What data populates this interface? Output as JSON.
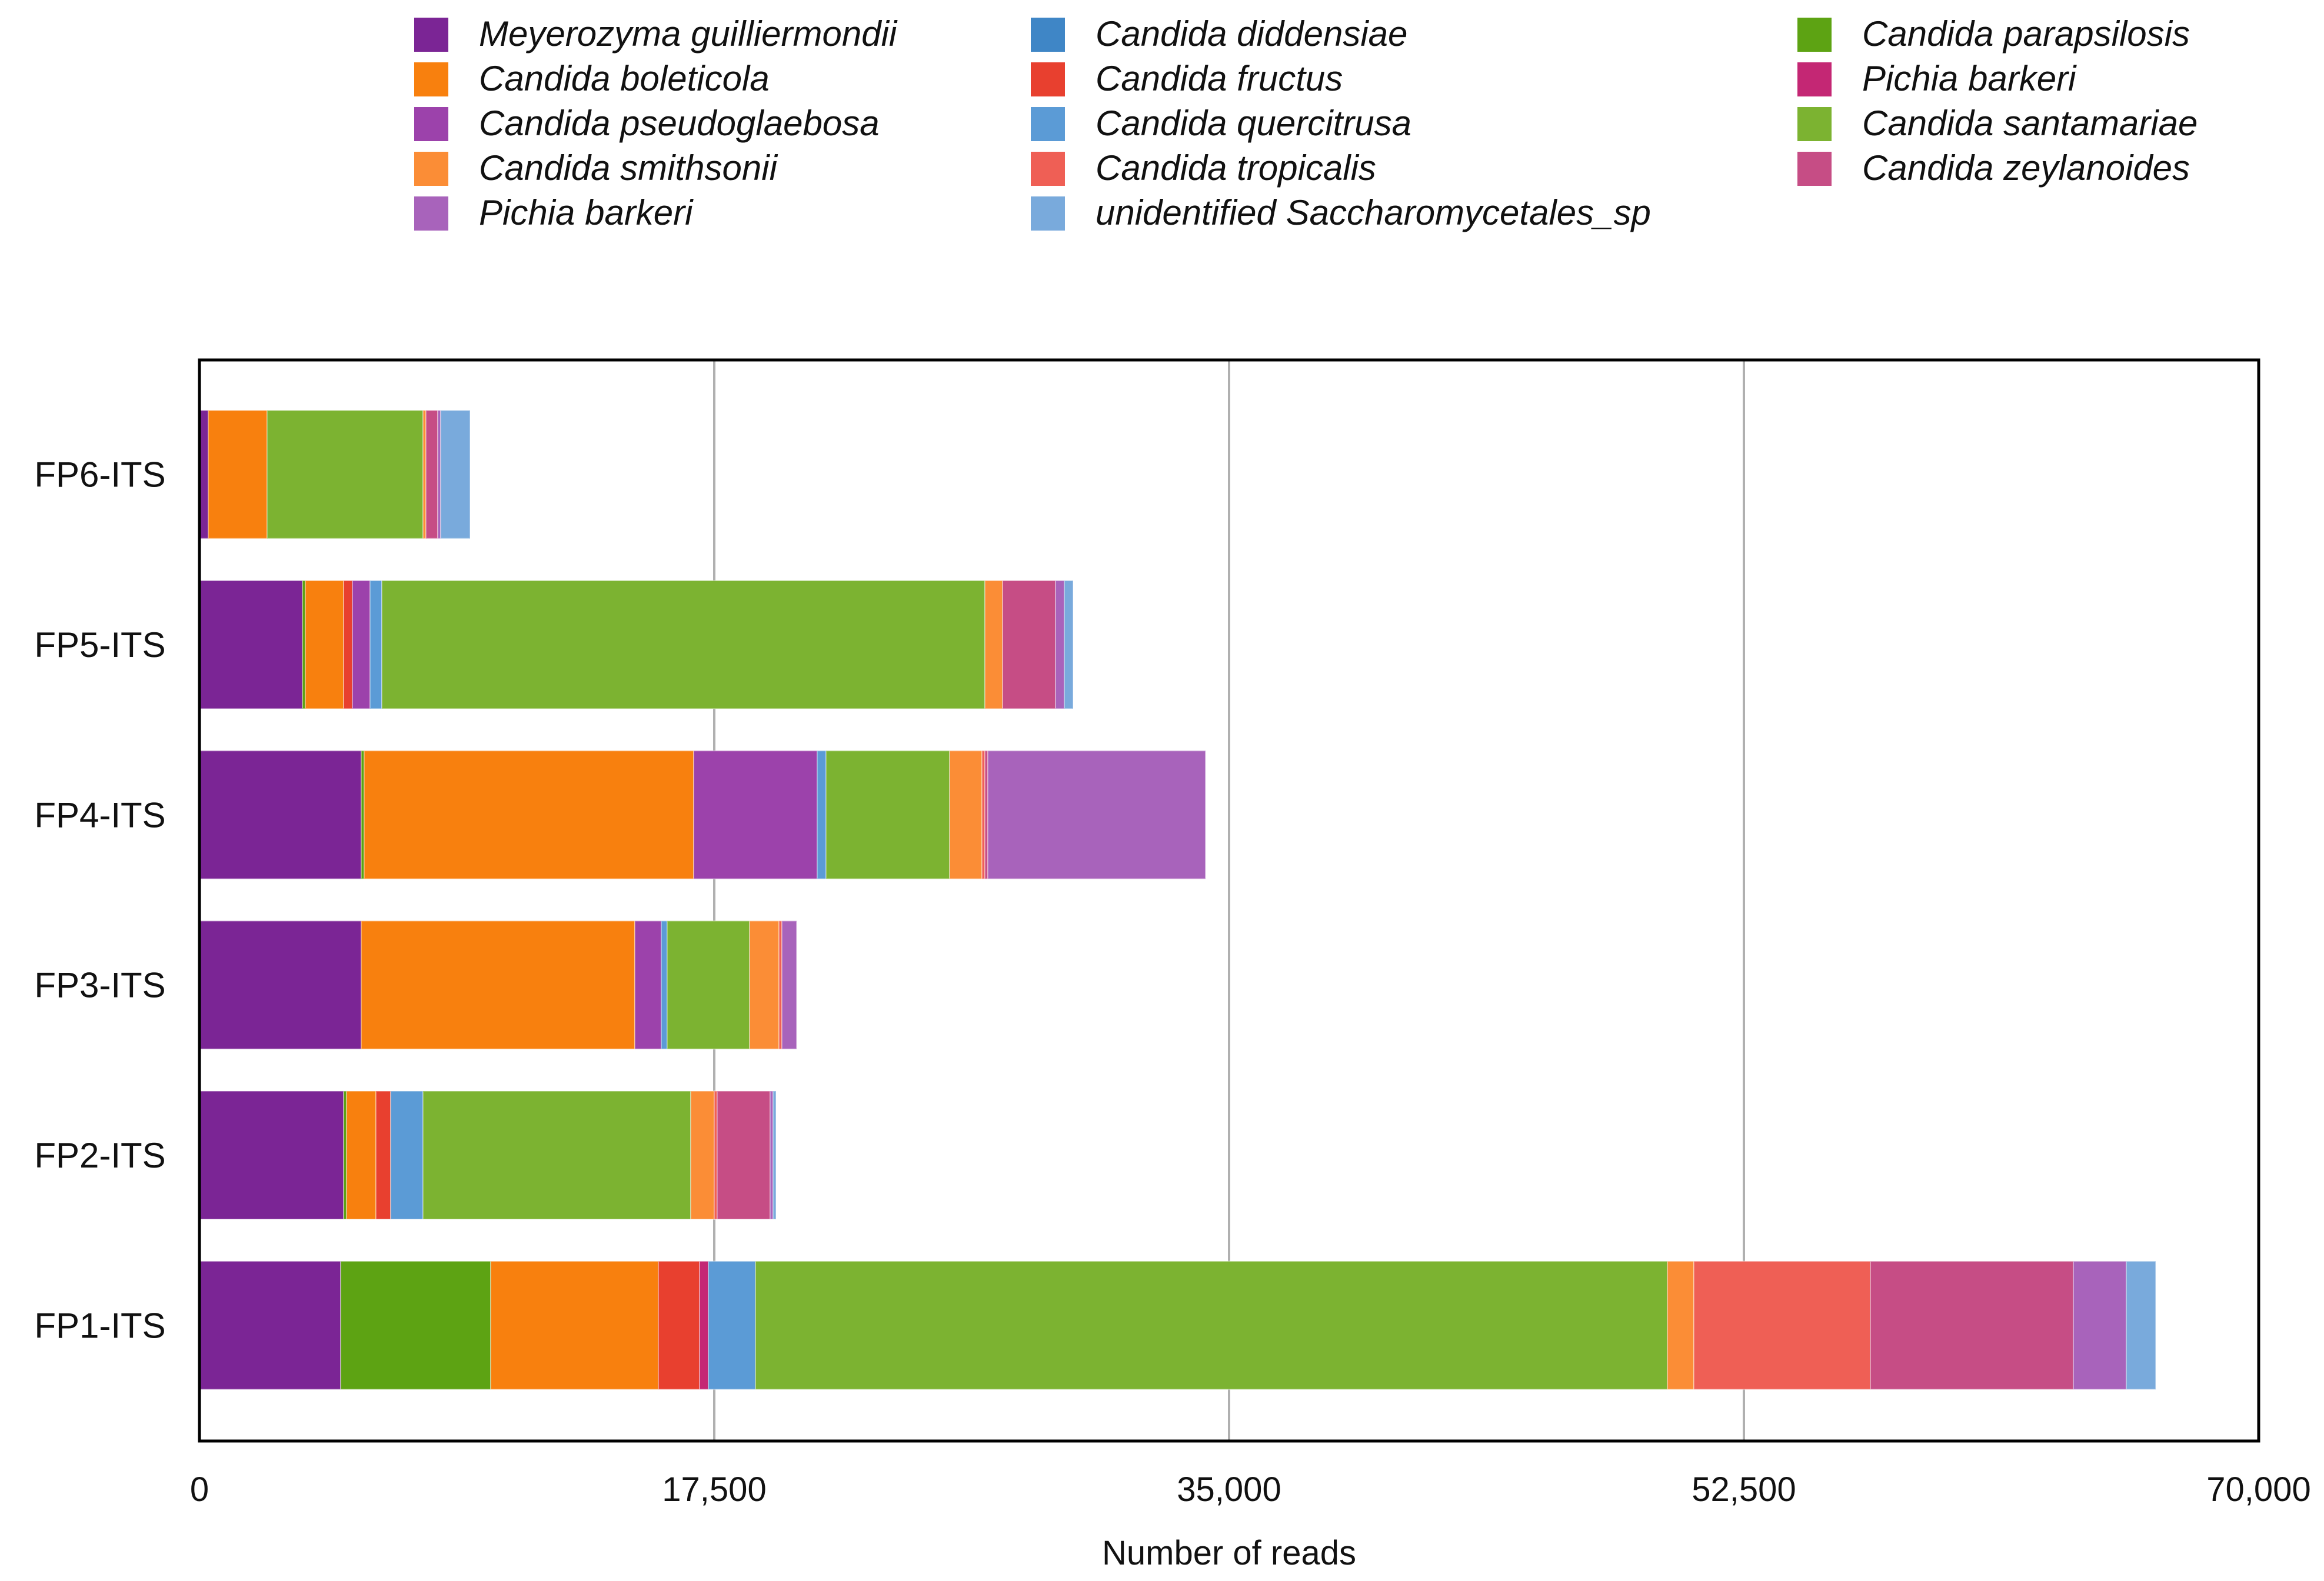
{
  "chart_data": {
    "type": "bar",
    "orientation": "horizontal",
    "stacked": true,
    "categories": [
      "FP6-ITS",
      "FP5-ITS",
      "FP4-ITS",
      "FP3-ITS",
      "FP2-ITS",
      "FP1-ITS"
    ],
    "xlabel": "Number of reads",
    "ylabel": "",
    "xlim": [
      0,
      70000
    ],
    "x_ticks": [
      0,
      17500,
      35000,
      52500,
      70000
    ],
    "x_tick_labels": [
      "0",
      "17,500",
      "35,000",
      "52,500",
      "70,000"
    ],
    "grid": "vertical",
    "legend": "top",
    "series": [
      {
        "name": "Meyerozyma guilliermondii",
        "color": "#7b2595",
        "values": [
          300,
          3500,
          5500,
          5500,
          4900,
          4800
        ]
      },
      {
        "name": "Candida parapsilosis",
        "color": "#5da313",
        "values": [
          0,
          100,
          100,
          0,
          100,
          5100
        ]
      },
      {
        "name": " Candida boleticola",
        "color": "#f8800e",
        "values": [
          2000,
          1300,
          11200,
          9300,
          1000,
          5700
        ]
      },
      {
        "name": "Candida fructus",
        "color": "#e8402f",
        "values": [
          0,
          300,
          0,
          0,
          500,
          1400
        ]
      },
      {
        "name": "Pichia barkeri",
        "color": "#c42774",
        "values": [
          0,
          0,
          0,
          0,
          0,
          300
        ]
      },
      {
        "name": "Candida pseudoglaebosa",
        "color": "#9c42ab",
        "values": [
          0,
          600,
          4200,
          900,
          0,
          0
        ]
      },
      {
        "name": "Candida quercitrusa",
        "color": "#5b9bd6",
        "values": [
          0,
          400,
          300,
          200,
          1100,
          1600
        ]
      },
      {
        "name": "Candida santamariae",
        "color": "#7cb331",
        "values": [
          5300,
          20500,
          4200,
          2800,
          9100,
          31000
        ]
      },
      {
        "name": "Candida smithsonii",
        "color": "#fb8d36",
        "values": [
          100,
          600,
          1100,
          1000,
          800,
          900
        ]
      },
      {
        "name": "Candida tropicalis",
        "color": "#ef5f55",
        "values": [
          0,
          0,
          100,
          100,
          100,
          6000
        ]
      },
      {
        "name": "Candida zeylanoides",
        "color": "#c64d85",
        "values": [
          400,
          1800,
          100,
          0,
          1800,
          6900
        ]
      },
      {
        "name": "Pichia barkeri",
        "color": "#a863bb",
        "values": [
          100,
          300,
          7400,
          500,
          100,
          1800
        ]
      },
      {
        "name": "unidentified Saccharomycetales_sp",
        "color": "#79aadc",
        "values": [
          1000,
          300,
          0,
          0,
          100,
          1000
        ]
      },
      {
        "name": "Candida diddensiae",
        "color": "#3f86c6",
        "values": [
          0,
          0,
          0,
          0,
          0,
          0
        ]
      }
    ]
  }
}
